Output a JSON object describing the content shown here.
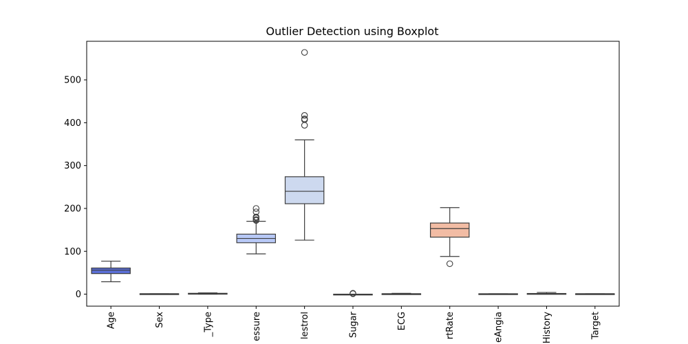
{
  "chart_data": {
    "type": "boxplot",
    "title": "Outlier Detection using Boxplot",
    "xlabel": "",
    "ylabel": "",
    "ylim": [
      -28,
      590
    ],
    "yticks": [
      0,
      100,
      200,
      300,
      400,
      500
    ],
    "grid": false,
    "categories": [
      {
        "label": "Age",
        "shown_label": "Age",
        "color": "#5b6fd6",
        "min": 29,
        "q1": 48,
        "median": 56,
        "q3": 61,
        "max": 77,
        "outliers": []
      },
      {
        "label": "Sex",
        "shown_label": "Sex",
        "color": "#7a92ec",
        "min": 0,
        "q1": 0,
        "median": 1,
        "q3": 1,
        "max": 1,
        "outliers": []
      },
      {
        "label": "_Type",
        "shown_label": "_Type",
        "color": "#9aaff5",
        "min": 0,
        "q1": 0,
        "median": 1,
        "q3": 2,
        "max": 3,
        "outliers": []
      },
      {
        "label": "essure",
        "shown_label": "essure",
        "color": "#b8c9f7",
        "min": 94,
        "q1": 120,
        "median": 130,
        "q3": 140,
        "max": 170,
        "outliers": [
          172,
          174,
          178,
          180,
          192,
          200
        ]
      },
      {
        "label": "lestrol",
        "shown_label": "lestrol",
        "color": "#cdd9ef",
        "min": 126,
        "q1": 211,
        "median": 240,
        "q3": 274,
        "max": 360,
        "outliers": [
          394,
          407,
          409,
          417,
          564
        ]
      },
      {
        "label": "Sugar",
        "shown_label": "Sugar",
        "color": "#dcdcdc",
        "min": 0,
        "q1": 0,
        "median": 0,
        "q3": 0,
        "max": 0,
        "outliers": [
          1,
          2
        ]
      },
      {
        "label": "ECG",
        "shown_label": "ECG",
        "color": "#ecd3c6",
        "min": 0,
        "q1": 0,
        "median": 1,
        "q3": 1,
        "max": 2,
        "outliers": []
      },
      {
        "label": "rtRate",
        "shown_label": "rtRate",
        "color": "#f2bca4",
        "min": 88,
        "q1": 133,
        "median": 153,
        "q3": 166,
        "max": 202,
        "outliers": [
          71
        ]
      },
      {
        "label": "eAngia",
        "shown_label": "eAngia",
        "color": "#f2a489",
        "min": 0,
        "q1": 0,
        "median": 0,
        "q3": 1,
        "max": 1,
        "outliers": []
      },
      {
        "label": "History",
        "shown_label": "History",
        "color": "#ec8b70",
        "min": 0,
        "q1": 0,
        "median": 0.8,
        "q3": 1.6,
        "max": 4,
        "outliers": []
      },
      {
        "label": "Target",
        "shown_label": "Target",
        "color": "#e0705a",
        "min": 0,
        "q1": 0,
        "median": 1,
        "q3": 1,
        "max": 1,
        "outliers": []
      }
    ]
  }
}
